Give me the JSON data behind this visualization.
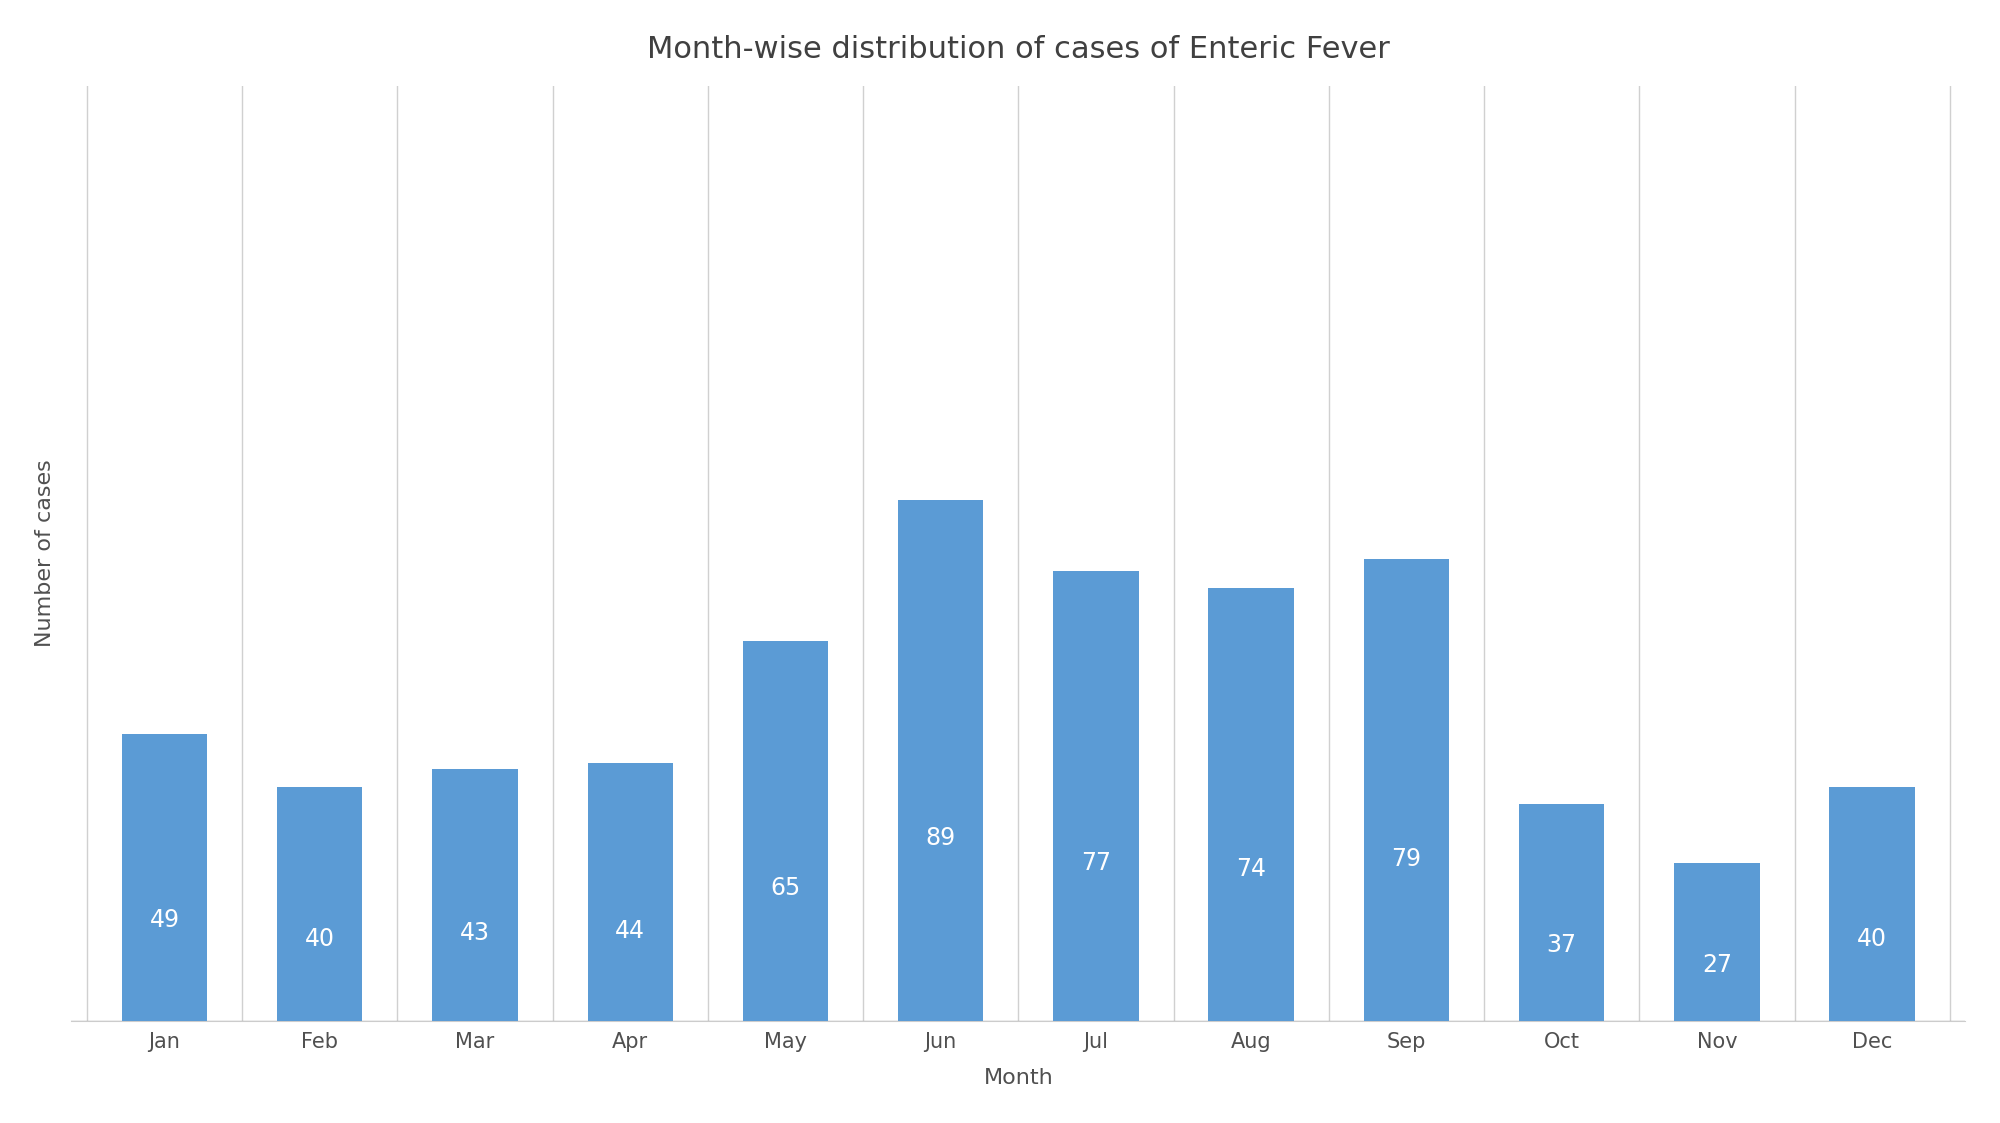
{
  "title": "Month-wise distribution of cases of Enteric Fever",
  "xlabel": "Month",
  "ylabel": "Number of cases",
  "categories": [
    "Jan",
    "Feb",
    "Mar",
    "Apr",
    "May",
    "Jun",
    "Jul",
    "Aug",
    "Sep",
    "Oct",
    "Nov",
    "Dec"
  ],
  "values": [
    49,
    40,
    43,
    44,
    65,
    89,
    77,
    74,
    79,
    37,
    27,
    40
  ],
  "bar_color": "#5b9bd5",
  "label_color": "#ffffff",
  "background_color": "#ffffff",
  "title_fontsize": 22,
  "axis_label_fontsize": 16,
  "tick_fontsize": 15,
  "bar_label_fontsize": 17,
  "ylim": [
    0,
    160
  ],
  "grid_color": "#d0d0d0",
  "title_color": "#404040",
  "axis_tick_color": "#505050"
}
